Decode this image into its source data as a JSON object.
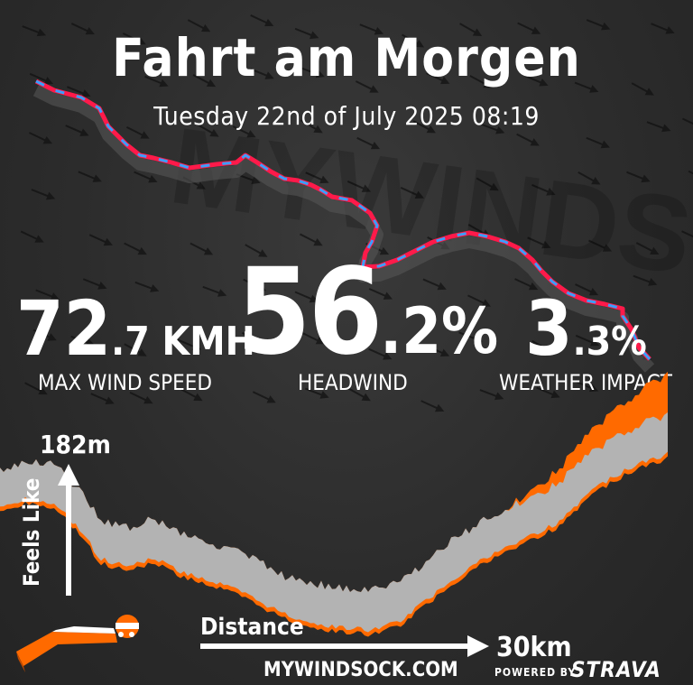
{
  "header": {
    "title": "Fahrt am Morgen",
    "subtitle": "Tuesday 22nd of July 2025 08:19"
  },
  "stats": {
    "max_wind_speed": {
      "whole": "72",
      "decimal": ".7",
      "unit": " KMH",
      "label": "MAX WIND SPEED"
    },
    "headwind": {
      "whole": "56",
      "decimal": ".2%",
      "label": "HEADWIND"
    },
    "weather_impact": {
      "whole": "3",
      "decimal": ".3%",
      "label": "WEATHER IMPACT"
    }
  },
  "elevation_chart": {
    "max_elevation_label": "182m",
    "y_axis_label": "Feels Like",
    "x_axis_label": "Distance",
    "x_axis_end_label": "30km"
  },
  "footer": {
    "site": "MYWINDSOCK.COM",
    "powered_by": "POWERED BY",
    "strava": "STRAVA"
  },
  "colors": {
    "elevation_actual": "#b3b3b3",
    "feels_like": "#ff6a00",
    "route_primary": "#ff1a4a",
    "route_secondary": "#3aa0ff",
    "route_tertiary": "#a020f0"
  }
}
